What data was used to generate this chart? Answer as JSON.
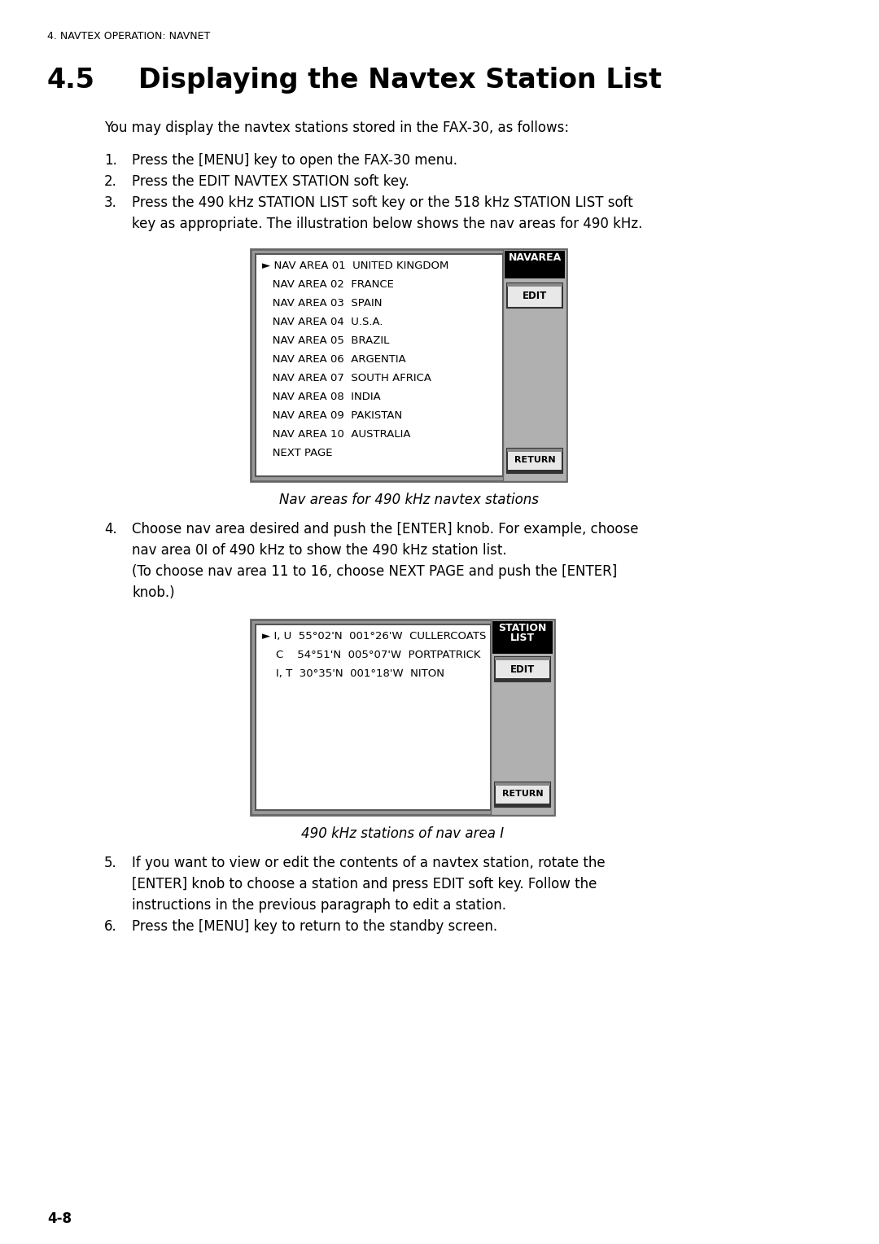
{
  "page_header": "4. NAVTEX OPERATION: NAVNET",
  "section_number": "4.5",
  "section_name": "Displaying the Navtex Station List",
  "intro_text": "You may display the navtex stations stored in the FAX-30, as follows:",
  "step1": "Press the [MENU] key to open the FAX-30 menu.",
  "step2": "Press the EDIT NAVTEX STATION soft key.",
  "step3a": "Press the 490 kHz STATION LIST soft key or the 518 kHz STATION LIST soft",
  "step3b": "key as appropriate. The illustration below shows the nav areas for 490 kHz.",
  "step4a": "Choose nav area desired and push the [ENTER] knob. For example, choose",
  "step4b": "nav area 0I of 490 kHz to show the 490 kHz station list.",
  "step4c": "(To choose nav area 11 to 16, choose NEXT PAGE and push the [ENTER]",
  "step4d": "knob.)",
  "step5a": "If you want to view or edit the contents of a navtex station, rotate the",
  "step5b": "[ENTER] knob to choose a station and press EDIT soft key. Follow the",
  "step5c": "instructions in the previous paragraph to edit a station.",
  "step6": "Press the [MENU] key to return to the standby screen.",
  "page_footer": "4-8",
  "diag1_header": "NAVAREA",
  "diag1_items": [
    "► NAV AREA 01  UNITED KINGDOM",
    "   NAV AREA 02  FRANCE",
    "   NAV AREA 03  SPAIN",
    "   NAV AREA 04  U.S.A.",
    "   NAV AREA 05  BRAZIL",
    "   NAV AREA 06  ARGENTIA",
    "   NAV AREA 07  SOUTH AFRICA",
    "   NAV AREA 08  INDIA",
    "   NAV AREA 09  PAKISTAN",
    "   NAV AREA 10  AUSTRALIA",
    "   NEXT PAGE"
  ],
  "diag1_caption": "Nav areas for 490 kHz navtex stations",
  "diag2_header_line1": "STATION",
  "diag2_header_line2": "LIST",
  "diag2_items": [
    "► I, U  55°02'N  001°26'W  CULLERCOATS",
    "    C    54°51'N  005°07'W  PORTPATRICK",
    "    I, T  30°35'N  001°18'W  NITON"
  ],
  "diag2_caption": "490 kHz stations of nav area I",
  "bg_color": "#ffffff",
  "outer_frame_color": "#999999",
  "inner_bg_color": "#ffffff",
  "sidebar_bg": "#b0b0b0",
  "btn_header_bg": "#000000",
  "btn_header_fg": "#ffffff",
  "btn_bg": "#e8e8e8",
  "btn_border": "#333333",
  "text_color": "#000000"
}
